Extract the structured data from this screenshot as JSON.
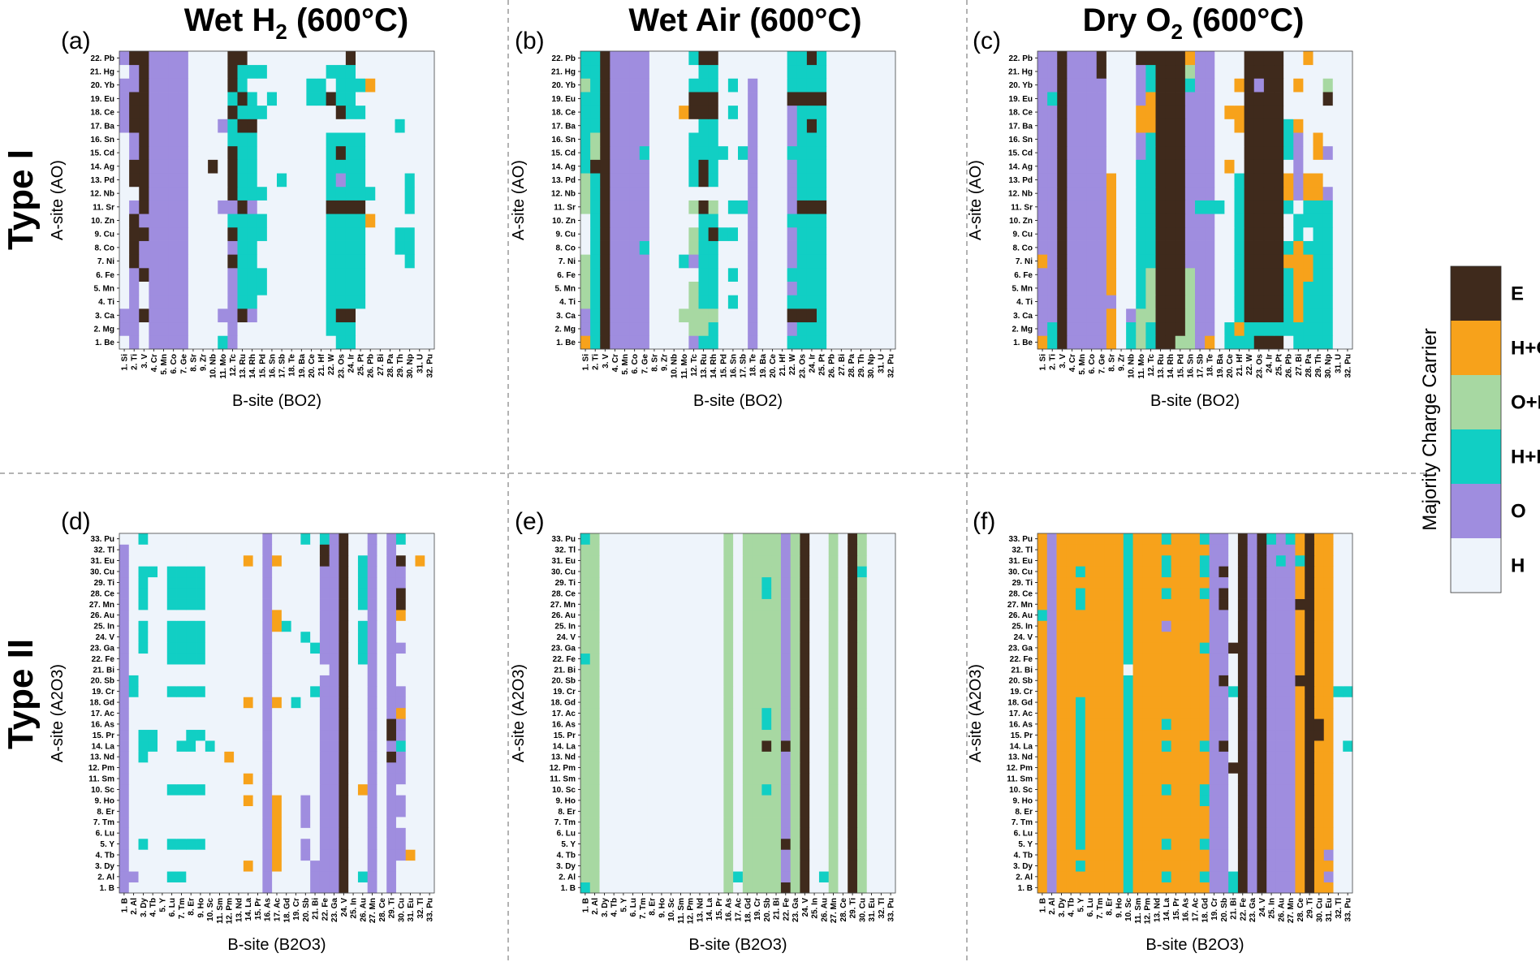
{
  "figure": {
    "column_titles": [
      "Wet H2 (600°C)",
      "Wet Air (600°C)",
      "Dry O2 (600°C)"
    ],
    "row_titles": [
      "Type I",
      "Type II"
    ],
    "legend": {
      "title": "Majority Charge Carrier",
      "items": [
        {
          "code": "E",
          "label": "E",
          "color": "#3f2a1c"
        },
        {
          "code": "HO",
          "label": "H+O",
          "color": "#f7a21b"
        },
        {
          "code": "OE",
          "label": "O+E",
          "color": "#a7d8a2"
        },
        {
          "code": "HE",
          "label": "H+E",
          "color": "#11cfc4"
        },
        {
          "code": "O",
          "label": "O",
          "color": "#9f8ddf"
        },
        {
          "code": "H",
          "label": "H",
          "color": "#eef4fb"
        }
      ]
    }
  },
  "chart_data": [
    {
      "panel": "(a)",
      "type": "heatmap",
      "title": "Wet H2 (600°C)",
      "xlabel": "B-site (BO2)",
      "ylabel": "A-site (AO)",
      "x": [
        "1. Si",
        "2. Ti",
        "3. V",
        "4. Cr",
        "5. Mn",
        "6. Co",
        "7. Ge",
        "8. Sr",
        "9. Zr",
        "10. Nb",
        "11. Mo",
        "12. Tc",
        "13. Ru",
        "14. Rh",
        "15. Pd",
        "16. Sn",
        "17. Sb",
        "18. Te",
        "19. Ba",
        "20. Ce",
        "21. Hf",
        "22. W",
        "23. Os",
        "24. Ir",
        "25. Pt",
        "26. Pb",
        "27. Bi",
        "28. Pa",
        "29. Th",
        "30. Np",
        "31. U",
        "32. Pu"
      ],
      "y": [
        "1. Be",
        "2. Mg",
        "3. Ca",
        "4. Ti",
        "5. Mn",
        "6. Fe",
        "7. Ni",
        "8. Co",
        "9. Cu",
        "10. Zn",
        "11. Sr",
        "12. Nb",
        "13. Pd",
        "14. Ag",
        "15. Cd",
        "16. Sn",
        "17. Ba",
        "18. Ce",
        "19. Eu",
        "20. Yb",
        "21. Hg",
        "22. Pb"
      ],
      "z": [
        "HOHOOOOHHHXOHHHHHHHHHHXXHHHHHHHH",
        "OOHOOOOHHHHOHHHHHHHHHXXXHHHHHHHH",
        "OOEOOOOHHHOOEOHHHHHHHXEEHHHHHHHH",
        "HOHOOOOHHHHOXXHHHHHHHXXXXHHHHHHH",
        "HOHOOOOHHHHOXXXHHHHHHXXXXHHHHHHH",
        "HOEOOOOHHHHOXXXHHHHHHXXXXHHHHHHH",
        "HEOOOOOHHHHEXXHHHHHHHXXXXHHHHXHH",
        "HEOOOOOHHHHOXXHHHHHHHXXXXHHHXXHH",
        "HEEOOOOHHHHEXXXHHHHHHXXXXHHHXXHH",
        "HEOOOOOHHHHXXXXHHHHHHXXXXQHHHHHH",
        "HOEOOOOHHHOOEOHHHHHHHEEEEHHHHXHH",
        "HHEOOOOHHHHEXXXHHHHHHXXXXXHHHXHH",
        "HEEOOOOHHHHEXXHHXHHHHXOXXHHHHXHH",
        "HEEOOOOHHEHEXXHHHHHHHXXXXHHHHHHH",
        "HOEOOOOHHHHEXXHHHHHHHXEXXHHHHHHH",
        "HOEOOOOHHHHXXXHHHHHHHXXXXHHHHHHH",
        "OEEOOOOHHHOXEEHHHHHHHHHHHHHHXHHH",
        "OEEOOOOHHHHEXXXHHHHHHHEXXHHHHHHH",
        "OEEOOOOHHHHXEXHXHHHXXEXXHHHHHHHH",
        "OOEOOOOHHHHEXHHHHHHXXHXXXQHHHHHH",
        "HOEOOOOHHHHEXXXHHHHHHXXXHHHHHHHH",
        "OEEOOOOHHHHEEHHHHHHHHHHEHHHHHHHH"
      ]
    },
    {
      "panel": "(b)",
      "type": "heatmap",
      "title": "Wet Air (600°C)",
      "xlabel": "B-site (BO2)",
      "ylabel": "A-site (AO)",
      "x": [
        "1. Si",
        "2. Ti",
        "3. V",
        "4. Cr",
        "5. Mn",
        "6. Co",
        "7. Ge",
        "8. Sr",
        "9. Zr",
        "10. Nb",
        "11. Mo",
        "12. Tc",
        "13. Ru",
        "14. Rh",
        "15. Pd",
        "16. Sn",
        "17. Sb",
        "18. Te",
        "19. Ba",
        "20. Ce",
        "21. Hf",
        "22. W",
        "23. Os",
        "24. Ir",
        "25. Pt",
        "26. Pb",
        "27. Bi",
        "28. Pa",
        "29. Th",
        "30. Np",
        "31. U",
        "32. Pu"
      ],
      "y": [
        "1. Be",
        "2. Mg",
        "3. Ca",
        "4. Ti",
        "5. Mn",
        "6. Fe",
        "7. Ni",
        "8. Co",
        "9. Cu",
        "10. Zn",
        "11. Sr",
        "12. Nb",
        "13. Pd",
        "14. Ag",
        "15. Cd",
        "16. Sn",
        "17. Ba",
        "18. Ce",
        "19. Eu",
        "20. Yb",
        "21. Hg",
        "22. Pb"
      ],
      "z": [
        "QXEOOOOHHHHOXXHHHOHHHXXXXHHHHHHH",
        "OXEOOOOHHHHUUXHHHOHHHOXXXHHHHHHH",
        "OXEOOOOHHHUUUUHHHOHHHEEEXHHHHHHH",
        "UXEOOOOHHHHUXXHXHOHHHXXXXHHHHHHH",
        "UXEOOOOHHHHUXXHHHOHHHOXXXHHHHHHH",
        "UXEOOOOHHHHHXXHXHOHHHXXXXHHHHHHH",
        "UXEOOOOHHHXOXXHHHOHHHOXXXHHHHHHH",
        "HXEOOOXHHHHUXXHHHOHHHOXXXHHHHHHH",
        "HXEOOOOHHHHUXEXXHOHHHOXXXHHHHHHH",
        "HXEOOOOHHHHHXXHHHOHHHXXXXHHHHHHH",
        "UXEOOOOHHHHUEUHXXOHHHOEEEHHHHHHH",
        "UXEOOOOHHHHHHHHHHOHHHOXXXHHHHHHH",
        "UXEOOOOHHHHXEXHHHOHHHOXXXHHHHHHH",
        "XEEOOOOHHHHXEXHHHOHHHOXXXHHHHHHH",
        "XUEOOOXHHHHXXXXHXOHHHXXXXHHHHHHH",
        "XUEOOOOHHHHXXXHHHOHHHOXXXHHHHHHH",
        "XXEOOOOHHHHHXXHHHOHHHOXEXHHHHHHH",
        "XXEOOOOHHHQEEEHXHOHHHOXXXHHHHHHH",
        "XXEOOOOHHHHEEEHHHOHHHEEEEHHHHHHH",
        "UXEOOOOHHHHXXXHXHOHHHXXXXHHHHHHH",
        "XXEOOOOHHHHHXXHHHHHHHXXXXHHHHHHH",
        "XXEOOOOHHHHXEEHHHHHHHXXEXHHHHHHH"
      ]
    },
    {
      "panel": "(c)",
      "type": "heatmap",
      "title": "Dry O2 (600°C)",
      "xlabel": "B-site (BO2)",
      "ylabel": "A-site (AO)",
      "x": [
        "1. Si",
        "2. Ti",
        "3. V",
        "4. Cr",
        "5. Mn",
        "6. Co",
        "7. Ge",
        "8. Sr",
        "9. Zr",
        "10. Nb",
        "11. Mo",
        "12. Tc",
        "13. Ru",
        "14. Rh",
        "15. Pd",
        "16. Sn",
        "17. Sb",
        "18. Te",
        "19. Ba",
        "20. Ce",
        "21. Hf",
        "22. W",
        "23. Os",
        "24. Ir",
        "25. Pt",
        "26. Pb",
        "27. Bi",
        "28. Pa",
        "29. Th",
        "30. Np",
        "31. U",
        "32. Pu"
      ],
      "y": [
        "1. Be",
        "2. Mg",
        "3. Ca",
        "4. Ti",
        "5. Mn",
        "6. Fe",
        "7. Ni",
        "8. Co",
        "9. Cu",
        "10. Zn",
        "11. Sr",
        "12. Nb",
        "13. Pd",
        "14. Ag",
        "15. Cd",
        "16. Sn",
        "17. Ba",
        "18. Ce",
        "19. Eu",
        "20. Yb",
        "21. Hg",
        "22. Pb"
      ],
      "z": [
        "QXEOOOOQHXUXEEUUOQHXXXEEEHXXXXHH",
        "OXEOOOOQHXUXEEEUOOHXQXXXXXXXXXHH",
        "OOEOOOOQHOUUEEEUOOHHXEEEEXQXXXHH",
        "OOEOOOOOHHXUEEEUOOHHXEEEEXQXXXHH",
        "OOEOOOOQHHXUEEEUOOHHXEEEEXQXXXHH",
        "OOEOOOOQHHXUEEEUOOHHXEEEEXQQXXHH",
        "QOEOOOOQHHXXEEEOOOHHXEEEEQQQXXHH",
        "OOEOOOOQHHXXEEEOOOHHXEEEEXQXXXHH",
        "OOEOOOOQHHXXEEEOOOHHXEEEEHXHXXHH",
        "OOEOOOOQHHXXEEEOOOHHXEEEEHXXXXHH",
        "OOEOOOOQHHXXEEEOXXXHXEEEEXHXXXHH",
        "OOEOOOOQHHXXEEEOOOHHXEEEEQOQQOHH",
        "OOEOOOOQHHXXEEEOOOHHXEEEEQOQQHHH",
        "OOEOOOOHHHXXEEEOOOHQHEEEEHOHHHHH",
        "OOEOOOOHHHOXEEEOOOHHHEEEEXOHQOHH",
        "OOEOOOOHHHOXEEEOOOHHHEEEEXOHQHHH",
        "OOEOOOOHHHQQEEEOOOHHQEEEEXQHHHHH",
        "OOEOOOOHHHQQEEEOOOHQQEEEEHHHHHHH",
        "OXEOOOOHHHOQEEEOOOHHHEEEEHHHHEHH",
        "OOEOOOOHHHOXEEEXOOHHQEOEEHQHHUHH",
        "OOEOOOEHHHOXEEEUOOHHHEEEEHHHHHHH",
        "OOEOOOEHHHEEEEEQOOHHHEEEEHHQHHHH"
      ]
    },
    {
      "panel": "(d)",
      "type": "heatmap",
      "title": "Wet H2 (600°C)",
      "xlabel": "B-site (B2O3)",
      "ylabel": "A-site (A2O3)",
      "x": [
        "1. B",
        "2. Al",
        "3. Dy",
        "4. Tb",
        "5. Y",
        "6. Lu",
        "7. Tm",
        "8. Er",
        "9. Ho",
        "10. Sc",
        "11. Sm",
        "12. Pm",
        "13. Nd",
        "14. La",
        "15. Pr",
        "16. As",
        "17. Ac",
        "18. Gd",
        "19. Cr",
        "20. Sb",
        "21. Bi",
        "22. Fe",
        "23. Ga",
        "24. V",
        "25. In",
        "26. Au",
        "27. Mn",
        "28. Ce",
        "29. Ti",
        "30. Cu",
        "31. Eu",
        "32. Tl",
        "33. Pu"
      ],
      "y": [
        "1. B",
        "2. Al",
        "3. Dy",
        "4. Tb",
        "5. Y",
        "6. Lu",
        "7. Tm",
        "8. Er",
        "9. Ho",
        "10. Sc",
        "11. Sm",
        "12. Pm",
        "13. Nd",
        "14. La",
        "15. Pr",
        "16. As",
        "17. Ac",
        "18. Gd",
        "19. Cr",
        "20. Sb",
        "21. Bi",
        "22. Fe",
        "23. Ga",
        "24. V",
        "25. In",
        "26. Au",
        "27. Mn",
        "28. Ce",
        "29. Ti",
        "30. Cu",
        "31. Eu",
        "32. Tl",
        "33. Pu"
      ],
      "z": [
        "OHHHHHHHHHHHHHHOHHHHOOOEHHOHOHHHH",
        "OOHHHXXHHHHHHHHOHHHHOOOEHXOHOHHHH",
        "OHHHHHHHHHHHHQHOQHHHOOOEHHOHOHHHH",
        "OHHHHHHHHHHHHHHOQHHOHOOEHHOHOOQHH",
        "OHXHHXXXXHHHHHHOQHHOHOOEHHOHOOHHH",
        "OHHHHHHHHHHHHHHOQHHHHOOEHHOHOOHHH",
        "OHHHHHHHHHHHHHHOQHHOHOOEHHOHOHHHH",
        "OHHHHHHHHHHHHHHOQHHOHOOEHHOHOOHHH",
        "OHHHHHHHHHHHHQHOQHHOHOOEHHOHOOHHH",
        "OHHHHXXXXHHHHHHOHHHHHOOEHQOHOHHHH",
        "OHHHHHHHHHHHHQHOHHHHHOOEHHOHOOHHH",
        "OHHHHHHHHHHHHHHOHHHHHOOEHHOHOOHHH",
        "OHXHHHHHHHHQHHHOHHHHHOOEHHOHEOHHH",
        "OHXXHHXXHXHHHHHOHHHHHOOEHHOHOXHHH",
        "OHXXHHHXXHHHHHHOHHHHHOOEHHOHEOHHH",
        "OHHHHHHHHHHHHHHOHHHHHOOEHHOHEOHHH",
        "OHHHHHHHHHHHHHHOHHHHHOOEHHOHOQHHH",
        "OHHHHHHHHHHHHQHOQHXHHOOEHHOHOOHHH",
        "OXHHHXXXXHHHHHHOHHHHXOOEHHOHOOHHH",
        "OXHHHHHHHHHHHHHOHHHHHOOEHHOHOHHHH",
        "OHHHHHHHHHHHHHHOHHHHHHOEHHOHOHHHH",
        "OHHHHXXXXHHHHHHOHHHHHOOEHXOHOHHHH",
        "OHXHHXXXXHHHHHHOHHHHXOOEHXOHOOHHH",
        "OHXHHXXXXHHHHHHOHHHXHOOEHXOHOHHHH",
        "OHXHHXXXXHHHHHHOQXHHHOOEHXOHOHHHH",
        "OHHHHHHHHHHHHHHOQHHHHOOEHHOHOQHHH",
        "OHXHHXXXXHHHHHHOHHHHHOOEHXOHOEHHH",
        "OHXHHXXXXHHHHHHOHHHHHOOEHXOHOEHHH",
        "OHXHHXXXXHHHHHHOHHHHHOOEHXOHOOHHH",
        "OHXXHXXXXHHHHHHOHHHHHOOEHXOHOOHHH",
        "OHHHHHHHHHHHHQHOQHHHHEOEHXOHOEHQH",
        "OHHHHHHHHHHHHHHOHHHHHEOEHHOHOHHHH",
        "HHXHHHHHHHHHHHHOHHHXHXOEHHOHOXHHH"
      ]
    },
    {
      "panel": "(e)",
      "type": "heatmap",
      "title": "Wet Air (600°C)",
      "xlabel": "B-site (B2O3)",
      "ylabel": "A-site (A2O3)",
      "x": [
        "1. B",
        "2. Al",
        "3. Dy",
        "4. Tb",
        "5. Y",
        "6. Lu",
        "7. Tm",
        "8. Er",
        "9. Ho",
        "10. Sc",
        "11. Sm",
        "12. Pm",
        "13. Nd",
        "14. La",
        "15. Pr",
        "16. As",
        "17. Ac",
        "18. Gd",
        "19. Cr",
        "20. Sb",
        "21. Bi",
        "22. Fe",
        "23. Ga",
        "24. V",
        "25. In",
        "26. Au",
        "27. Mn",
        "28. Ce",
        "29. Ti",
        "30. Cu",
        "31. Eu",
        "32. Tl",
        "33. Pu"
      ],
      "y": [
        "1. B",
        "2. Al",
        "3. Dy",
        "4. Tb",
        "5. Y",
        "6. Lu",
        "7. Tm",
        "8. Er",
        "9. Ho",
        "10. Sc",
        "11. Sm",
        "12. Pm",
        "13. Nd",
        "14. La",
        "15. Pr",
        "16. As",
        "17. Ac",
        "18. Gd",
        "19. Cr",
        "20. Sb",
        "21. Bi",
        "22. Fe",
        "23. Ga",
        "24. V",
        "25. In",
        "26. Au",
        "27. Mn",
        "28. Ce",
        "29. Ti",
        "30. Cu",
        "31. Eu",
        "32. Tl",
        "33. Pu"
      ],
      "z": [
        "XUHHHHHHHHHHHHHUHUUUUEUEHHUHEUHHH",
        "UUHHHHHHHHHHHHHUXUUUUOUEHXUHEUHHH",
        "UUHHHHHHHHHHHHHUHUUUUOUEHHUHEUHHH",
        "UUHHHHHHHHHHHHHUHUUUUOUEHHUHEUHHH",
        "UUHHHHHHHHHHHHHUHUUUUEUEHHUHEUHHH",
        "UUHHHHHHHHHHHHHUHUUUUOUEHHUHEUHHH",
        "UUHHHHHHHHHHHHHUHUUUUOUEHHUHEUHHH",
        "UUHHHHHHHHHHHHHUHUUUUOUEHHUHEUHHH",
        "UUHHHHHHHHHHHHHUHUUUUOUEHHUHEUHHH",
        "UUHHHHHHHHHHHHHUHUUXUOUEHHUHEUHHH",
        "UUHHHHHHHHHHHHHUHUUUUOUEHHUHEUHHH",
        "UUHHHHHHHHHHHHHUHUUUUOUEHHUHEUHHH",
        "UUHHHHHHHHHHHHHUHUUUUOUEHHUHEUHHH",
        "UUHHHHHHHHHHHHHUHUUEUEUEHHUHEUHHH",
        "UUHHHHHHHHHHHHHUHUUUUOUEHHUHEUHHH",
        "UUHHHHHHHHHHHHHUHUUXUOUEHHUHEUHHH",
        "UUHHHHHHHHHHHHHUHUUXUOUEHHUHEUHHH",
        "UUHHHHHHHHHHHHHUHUUUUOUEHHUHEUHHH",
        "UUHHHHHHHHHHHHHUHUUUUOUEHHUHEUHHH",
        "UUHHHHHHHHHHHHHUHUUUUOUEHHUHEUHHH",
        "UUHHHHHHHHHHHHHUHUUUUOUEHHUHEUHHH",
        "XUHHHHHHHHHHHHHUHUUUUOUEHHUHEUHHH",
        "UUHHHHHHHHHHHHHUHUUUUOUEHHUHEUHHH",
        "UUHHHHHHHHHHHHHUHUUUUOUEHHUHEUHHH",
        "UUHHHHHHHHHHHHHUHUUUUOUEHHUHEUHHH",
        "UUHHHHHHHHHHHHHUHUUUUOUEHHUHEUHHH",
        "UUHHHHHHHHHHHHHUHUUUUOUEHHUHEUHHH",
        "UUHHHHHHHHHHHHHUHUUXUOUEHHUHEUHHH",
        "UUHHHHHHHHHHHHHUHUUXUOUEHHUHEUHHH",
        "UUHHHHHHHHHHHHHUHUUUUOUEHHUHEXHHH",
        "UUHHHHHHHHHHHHHUHUUUUOUEHHUHEUHHH",
        "UUHHHHHHHHHHHHHUHUUUUOUEHHUHEUHHH",
        "XUHHHHHHHHHHHHHUHUUUUOUEHHUHEUHHH"
      ]
    },
    {
      "panel": "(f)",
      "type": "heatmap",
      "title": "Dry O2 (600°C)",
      "xlabel": "B-site (B2O3)",
      "ylabel": "A-site (A2O3)",
      "x": [
        "1. B",
        "2. Al",
        "3. Dy",
        "4. Tb",
        "5. Y",
        "6. Lu",
        "7. Tm",
        "8. Er",
        "9. Ho",
        "10. Sc",
        "11. Sm",
        "12. Pm",
        "13. Nd",
        "14. La",
        "15. Pr",
        "16. As",
        "17. Ac",
        "18. Gd",
        "19. Cr",
        "20. Sb",
        "21. Bi",
        "22. Fe",
        "23. Ga",
        "24. V",
        "25. In",
        "26. Au",
        "27. Mn",
        "28. Ce",
        "29. Ti",
        "30. Cu",
        "31. Eu",
        "32. Tl",
        "33. Pu"
      ],
      "y": [
        "1. B",
        "2. Al",
        "3. Dy",
        "4. Tb",
        "5. Y",
        "6. Lu",
        "7. Tm",
        "8. Er",
        "9. Ho",
        "10. Sc",
        "11. Sm",
        "12. Pm",
        "13. Nd",
        "14. La",
        "15. Pr",
        "16. As",
        "17. Ac",
        "18. Gd",
        "19. Cr",
        "20. Sb",
        "21. Bi",
        "22. Fe",
        "23. Ga",
        "24. V",
        "25. In",
        "26. Au",
        "27. Mn",
        "28. Ce",
        "29. Ti",
        "30. Cu",
        "31. Eu",
        "32. Tl",
        "33. Pu"
      ],
      "z": [
        "QOQQQQQQQXQQQQQQQQOOXEOEOOOQEQQHH",
        "QOQQQQQQQXQQQXQQQXOOXEOEOOOQEQOHH",
        "QOQQXQQQQXQQQQQQQQOOHEOEOOOQEQQHH",
        "QOQQQQQQQXQQQQQQQQOOHEOEOOOQEQOHH",
        "QOQQXQQQQXQQQXQQQXOOHEOEOOOQEQQHH",
        "QOQQXQQQQXQQQQQQQQOOHEOEOOOQEQQHH",
        "QOQQXQQQQXQQQQQQQQOOHEOEOOOQEQQHH",
        "QOQQXQQQQXQQQQQQQQOOHEOEOOOQEQQHH",
        "QOQQXQQQQXQQQQQQQXOOHEOEOOOQEQQHH",
        "QOQQXQQQQXQQQXQQQXOOHEOEOOOQEQQHH",
        "QOQQXQQQQXQQQQQQQQOOHEOEOOOQEQQHH",
        "QOQQXQQQQXQQQQQQQQOOEEOEOOOQEQQHH",
        "QOQQXQQQQXQQQQQQQQOOHEOEOOOQEQQHH",
        "QOQQXQQQQXQQQXQQQXOEHEOEOOOQEQQHX",
        "QOQQXQQQQXQQQQQQQQOOHEOEOOOQEEQHH",
        "QOQQXQQQQXQQQXQQQQOOHEOEOOOQEEQHH",
        "QOQQXQQQQXQQQQQQQQOOHEOEOOOQEQQHH",
        "QOQQXQQQQXQQQQQQQQOOHEOEOOOQEQQHH",
        "QOQQQQQQQXQQQQQQQQOOXEOEOOOQEQQXX",
        "QOQQQQQQQXQQQQQQQQOEHEOEOOOEEQQHH",
        "QOQQQQQQQHQQQQQQQQOOHEOEOOOQEQQHH",
        "QOQQQQQQQXQQQQQQQQOOHEOEOOOQEQQHH",
        "QOQQQQQQQXQQQQQQQXOOEEOEOOOQEQQHH",
        "QOQQQQQQQXQQQQQQQQOOHEOEOOOQEQQHH",
        "QOQQQQQQQXQQQOQQQQOOHEOEOOOQEQQHH",
        "XOQQQQQQQXQQQQQQQQOOHEOEOOOQEQQHH",
        "QOQQXQQQQXQQQQQQQQOEHEOEOOOEEQQHH",
        "QOQQXQQQQXQQQXQQQXOEHEOEOOOQEQQHH",
        "QOQQQQQQQXQQQQQQQQOOHEOEOOOQEQQHH",
        "QOQQXQQQQXQQQXQQQXOEHEOEOOOQEQQHH",
        "QOQQQQQQQXQQQXQQQXOOHEOEOXOXEQQHH",
        "QOQQQQQQQXQQQQQQQQOOHEOEOOOQEQQHH",
        "QOQQQQQQQXQQQXQQQXOOHEOEXOXQEQQHH"
      ]
    }
  ],
  "cell_code_key": {
    "E": "E",
    "Q": "H+O",
    "U": "O+E",
    "X": "H+E",
    "O": "O",
    "H": "H"
  }
}
